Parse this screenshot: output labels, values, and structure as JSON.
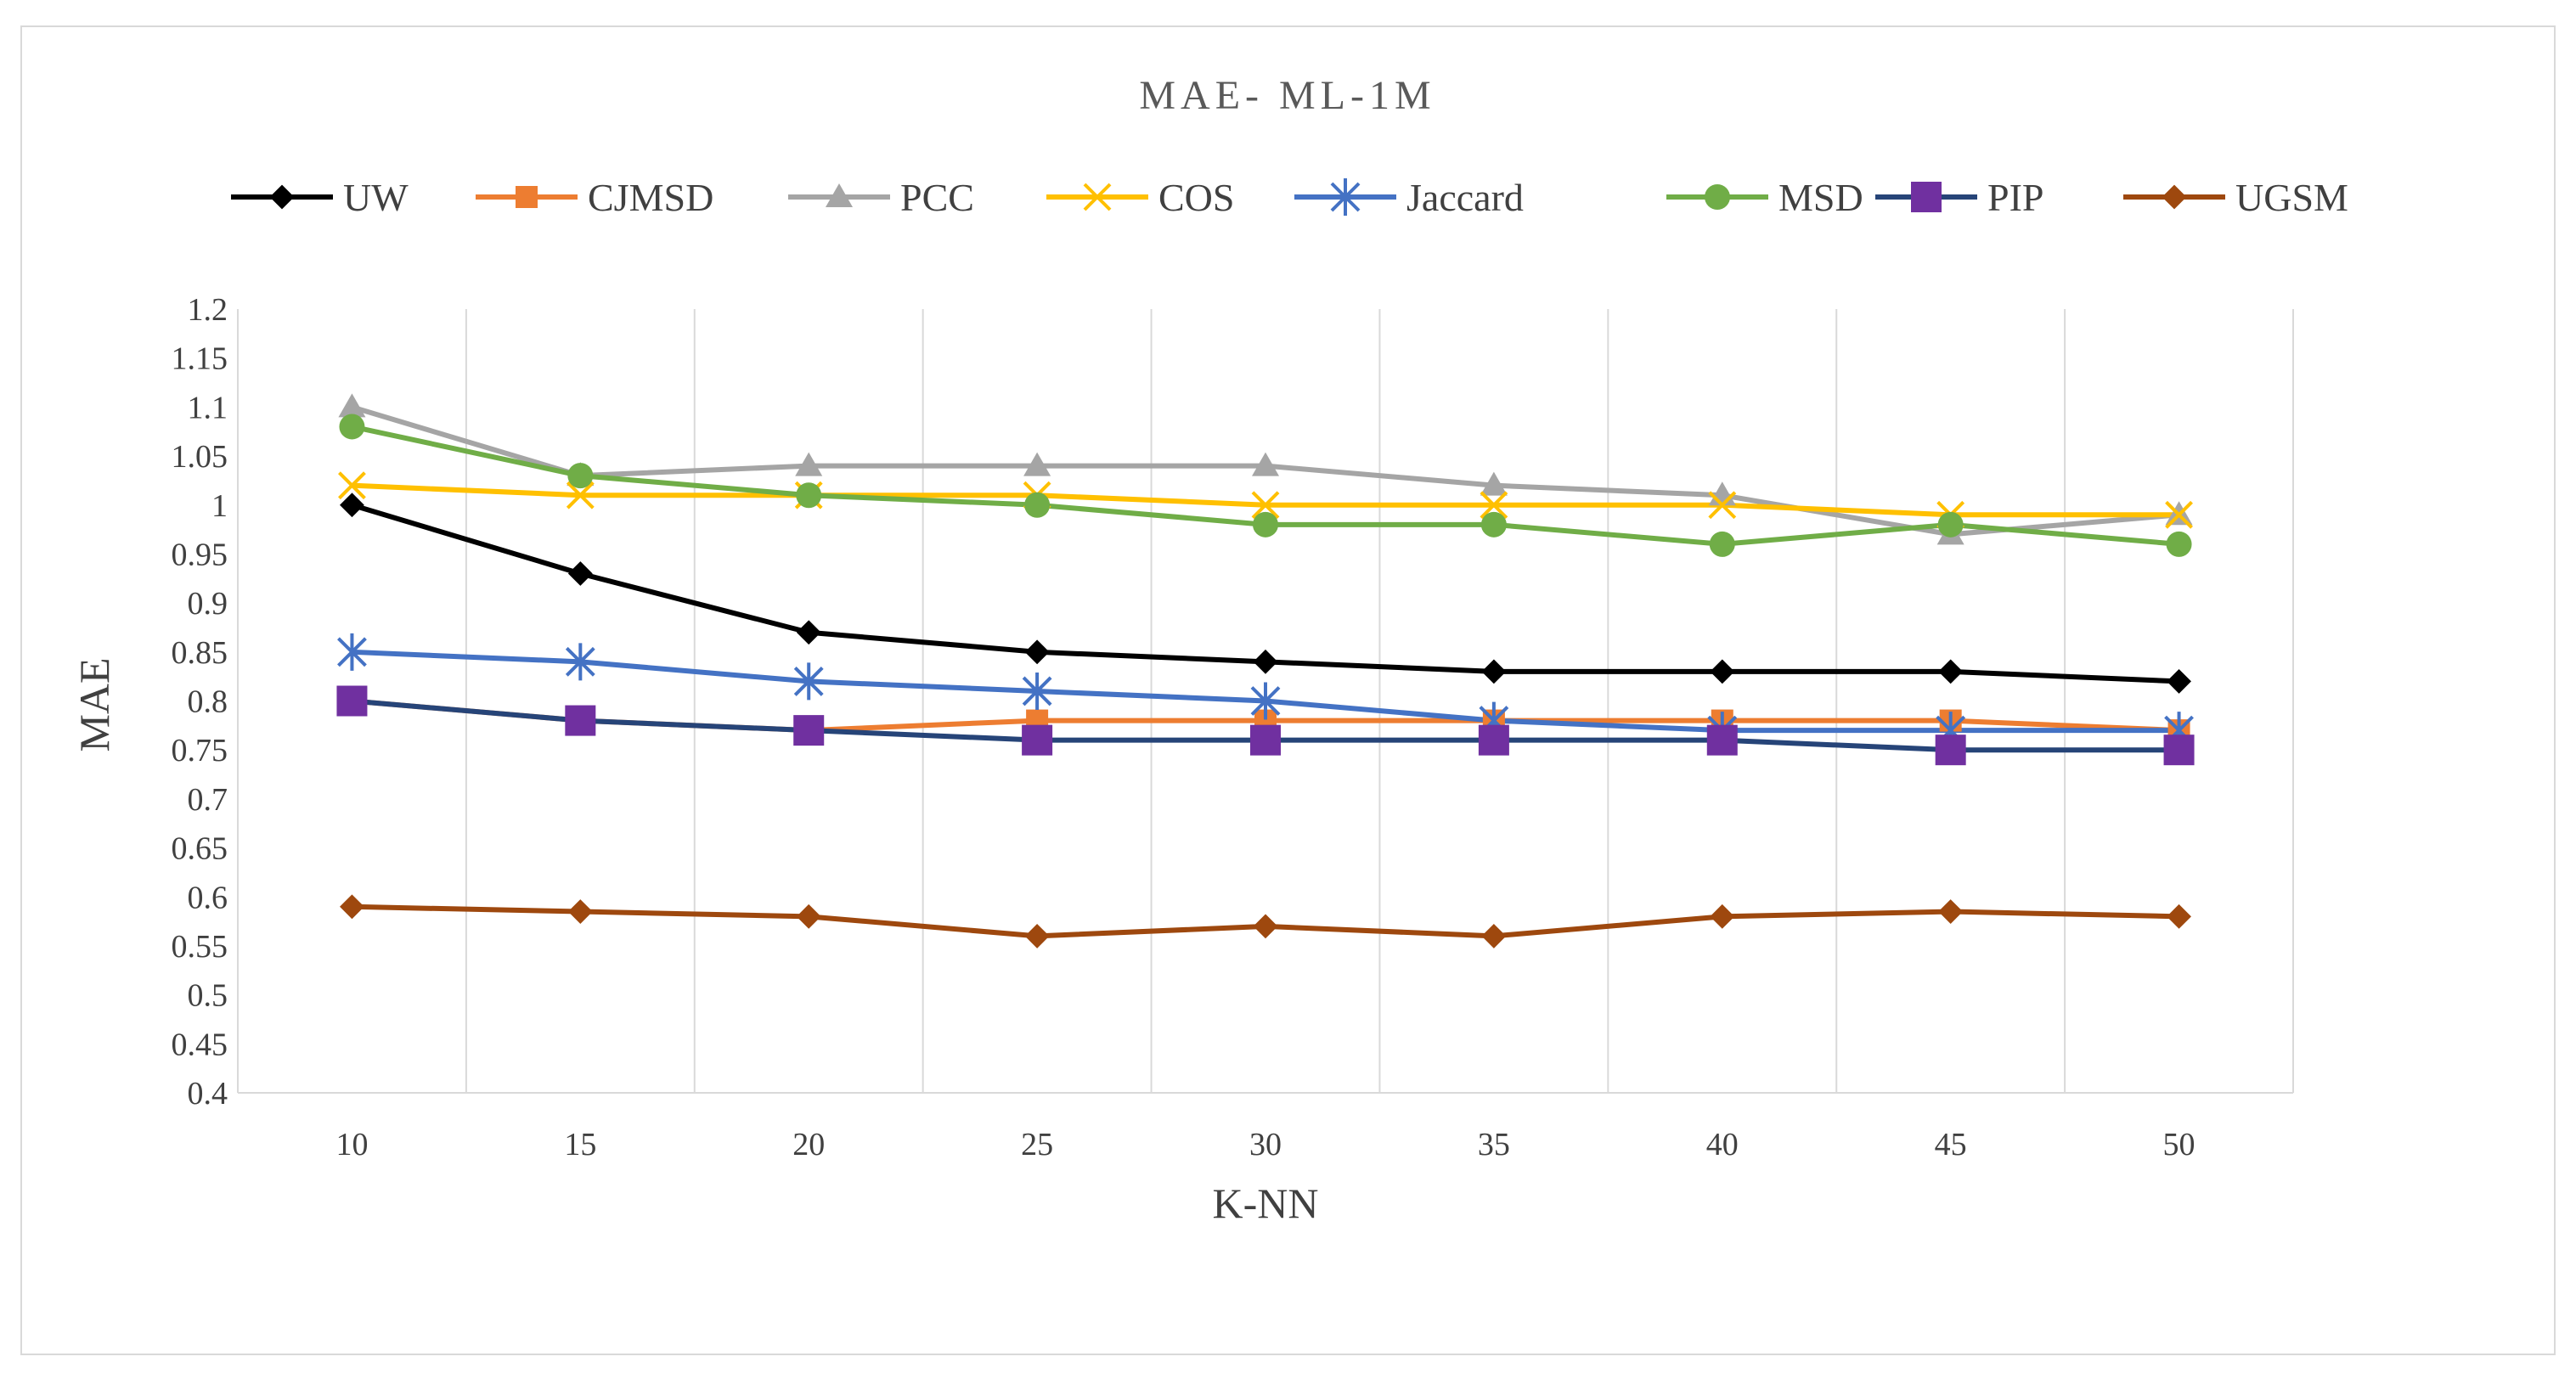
{
  "chart_data": {
    "type": "line",
    "title": "MAE- ML-1M",
    "xlabel": "K-NN",
    "ylabel": "MAE",
    "categories": [
      "10",
      "15",
      "20",
      "25",
      "30",
      "35",
      "40",
      "45",
      "50"
    ],
    "ylim": [
      0.4,
      1.2
    ],
    "yticks": [
      0.4,
      0.45,
      0.5,
      0.55,
      0.6,
      0.65,
      0.7,
      0.75,
      0.8,
      0.85,
      0.9,
      0.95,
      1,
      1.05,
      1.1,
      1.15,
      1.2
    ],
    "ytick_labels": [
      "0.4",
      "0.45",
      "0.5",
      "0.55",
      "0.6",
      "0.65",
      "0.7",
      "0.75",
      "0.8",
      "0.85",
      "0.9",
      "0.95",
      "1",
      "1.05",
      "1.1",
      "1.15",
      "1.2"
    ],
    "grid": "vertical",
    "legend_position": "top",
    "series": [
      {
        "name": "UW",
        "color": "#000000",
        "marker": "diamond",
        "values": [
          1.0,
          0.93,
          0.87,
          0.85,
          0.84,
          0.83,
          0.83,
          0.83,
          0.82
        ]
      },
      {
        "name": "CJMSD",
        "color": "#ed7d31",
        "marker": "square",
        "values": [
          0.8,
          0.78,
          0.77,
          0.78,
          0.78,
          0.78,
          0.78,
          0.78,
          0.77
        ]
      },
      {
        "name": "PCC",
        "color": "#a5a5a5",
        "marker": "triangle",
        "values": [
          1.1,
          1.03,
          1.04,
          1.04,
          1.04,
          1.02,
          1.01,
          0.97,
          0.99
        ]
      },
      {
        "name": "COS",
        "color": "#ffc000",
        "marker": "x",
        "values": [
          1.02,
          1.01,
          1.01,
          1.01,
          1.0,
          1.0,
          1.0,
          0.99,
          0.99
        ]
      },
      {
        "name": "Jaccard",
        "color": "#4472c4",
        "marker": "star",
        "values": [
          0.85,
          0.84,
          0.82,
          0.81,
          0.8,
          0.78,
          0.77,
          0.77,
          0.77
        ]
      },
      {
        "name": "MSD",
        "color": "#70ad47",
        "marker": "circle",
        "values": [
          1.08,
          1.03,
          1.01,
          1.0,
          0.98,
          0.98,
          0.96,
          0.98,
          0.96
        ]
      },
      {
        "name": "PIP",
        "color": "#264478",
        "marker": "square-purple",
        "marker_color": "#7030a0",
        "values": [
          0.8,
          0.78,
          0.77,
          0.76,
          0.76,
          0.76,
          0.76,
          0.75,
          0.75
        ]
      },
      {
        "name": "UGSM",
        "color": "#9e480e",
        "marker": "diamond",
        "values": [
          0.59,
          0.585,
          0.58,
          0.56,
          0.57,
          0.56,
          0.58,
          0.585,
          0.58
        ]
      }
    ]
  }
}
